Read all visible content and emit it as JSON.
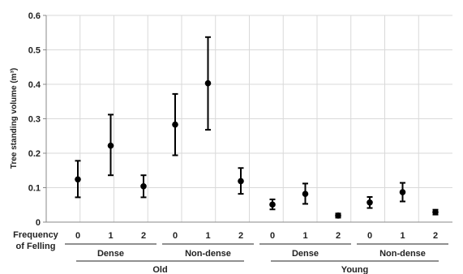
{
  "chart_data": {
    "type": "scatter",
    "ylabel": "Tree standing volume (m³)",
    "ylim": [
      0,
      0.6
    ],
    "yticks": [
      "0",
      "0.1",
      "0.2",
      "0.3",
      "0.4",
      "0.5",
      "0.6"
    ],
    "x_row_label_line1": "Frequency",
    "x_row_label_line2": "of Felling",
    "grid": true,
    "groups": [
      {
        "age": "Old",
        "density": "Dense",
        "points": [
          {
            "x": "0",
            "y": 0.124,
            "low": 0.072,
            "high": 0.178
          },
          {
            "x": "1",
            "y": 0.222,
            "low": 0.136,
            "high": 0.312
          },
          {
            "x": "2",
            "y": 0.104,
            "low": 0.072,
            "high": 0.136
          }
        ]
      },
      {
        "age": "Old",
        "density": "Non-dense",
        "points": [
          {
            "x": "0",
            "y": 0.283,
            "low": 0.194,
            "high": 0.372
          },
          {
            "x": "1",
            "y": 0.403,
            "low": 0.268,
            "high": 0.537
          },
          {
            "x": "2",
            "y": 0.119,
            "low": 0.082,
            "high": 0.157
          }
        ]
      },
      {
        "age": "Young",
        "density": "Dense",
        "points": [
          {
            "x": "0",
            "y": 0.051,
            "low": 0.037,
            "high": 0.066
          },
          {
            "x": "1",
            "y": 0.082,
            "low": 0.053,
            "high": 0.112
          },
          {
            "x": "2",
            "y": 0.019,
            "low": 0.013,
            "high": 0.025
          }
        ]
      },
      {
        "age": "Young",
        "density": "Non-dense",
        "points": [
          {
            "x": "0",
            "y": 0.057,
            "low": 0.041,
            "high": 0.073
          },
          {
            "x": "1",
            "y": 0.087,
            "low": 0.06,
            "high": 0.114
          },
          {
            "x": "2",
            "y": 0.029,
            "low": 0.022,
            "high": 0.036
          }
        ]
      }
    ],
    "age_groups": [
      "Old",
      "Young"
    ],
    "colors": {
      "marker": "#000000",
      "grid": "#d9d9d9",
      "axis": "#888888"
    }
  }
}
